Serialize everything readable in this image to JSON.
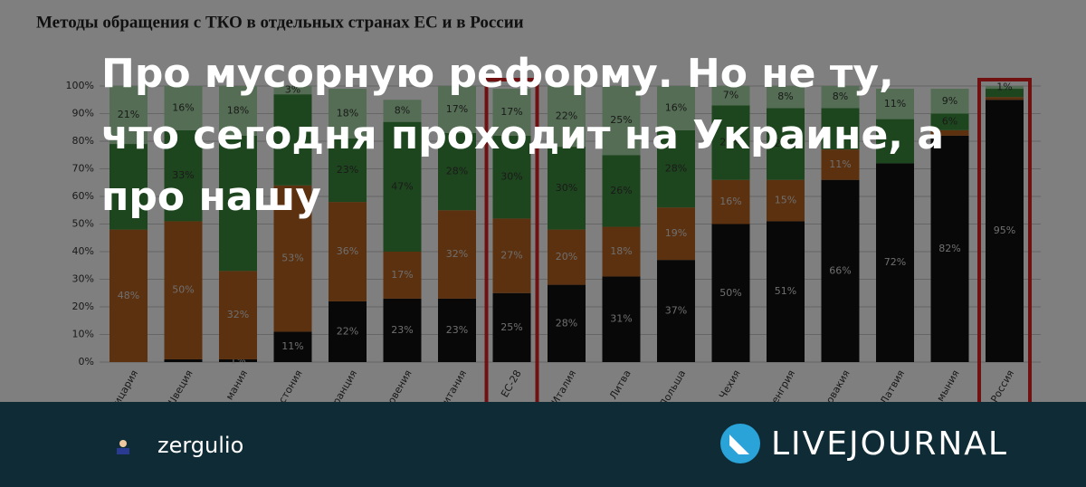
{
  "post": {
    "title": "Про мусорную реформу. Но не ту, что сегодня проходит на Украине, а про нашу",
    "author": "zergulio",
    "brand": "LIVEJOURNAL"
  },
  "chart_data": {
    "type": "stacked_bar",
    "title": "Методы обращения с ТКО в отдельных странах ЕС и в России",
    "categories": [
      "ицария",
      "Швеция",
      "мания",
      "Эстония",
      "ранция",
      "овения",
      "итания",
      "ЕС-28",
      "Италия",
      "Литва",
      "Польша",
      "Чехия",
      "Венгрия",
      "ловакия",
      "Латвия",
      "мыния",
      "Россия"
    ],
    "ylim": [
      0,
      100
    ],
    "yticks": [
      {
        "value": 0,
        "label": "0%"
      },
      {
        "value": 10,
        "label": "10%"
      },
      {
        "value": 20,
        "label": "20%"
      },
      {
        "value": 30,
        "label": "30%"
      },
      {
        "value": 40,
        "label": "40%"
      },
      {
        "value": 50,
        "label": "50%"
      },
      {
        "value": 60,
        "label": "60%"
      },
      {
        "value": 70,
        "label": "70%"
      },
      {
        "value": 80,
        "label": "80%"
      },
      {
        "value": 90,
        "label": "90%"
      },
      {
        "value": 100,
        "label": "100%"
      }
    ],
    "grid": true,
    "series": [
      {
        "color": "#111111",
        "values": [
          0,
          1,
          1,
          11,
          22,
          23,
          23,
          25,
          28,
          31,
          37,
          50,
          51,
          66,
          72,
          82,
          95
        ],
        "value_labels": [
          null,
          null,
          "1%",
          "11%",
          "22%",
          "23%",
          "23%",
          "25%",
          "28%",
          "31%",
          "37%",
          "50%",
          "51%",
          "66%",
          "72%",
          "82%",
          "95%"
        ]
      },
      {
        "color": "#b8621f",
        "values": [
          48,
          50,
          32,
          53,
          36,
          17,
          32,
          27,
          20,
          18,
          19,
          16,
          15,
          11,
          0,
          2,
          1
        ],
        "value_labels": [
          "48%",
          "50%",
          "32%",
          "53%",
          "36%",
          "17%",
          "32%",
          "27%",
          "20%",
          "18%",
          "19%",
          "16%",
          "15%",
          "11%",
          null,
          null,
          null
        ]
      },
      {
        "color": "#3c8c3c",
        "values": [
          31,
          33,
          49,
          33,
          23,
          47,
          28,
          30,
          30,
          26,
          28,
          27,
          26,
          15,
          16,
          6,
          3
        ],
        "value_labels": [
          null,
          "33%",
          null,
          null,
          "23%",
          "47%",
          "28%",
          "30%",
          "30%",
          "26%",
          "28%",
          "27%",
          "26%",
          null,
          null,
          "6%",
          null
        ]
      },
      {
        "color": "#a9dba9",
        "values": [
          21,
          16,
          18,
          3,
          18,
          8,
          17,
          17,
          22,
          25,
          16,
          7,
          8,
          8,
          11,
          9,
          1
        ],
        "value_labels": [
          "21%",
          "16%",
          "18%",
          "3%",
          "18%",
          "8%",
          "17%",
          "17%",
          "22%",
          "25%",
          "16%",
          "7%",
          "8%",
          "8%",
          "11%",
          "9%",
          "1%"
        ]
      }
    ]
  }
}
